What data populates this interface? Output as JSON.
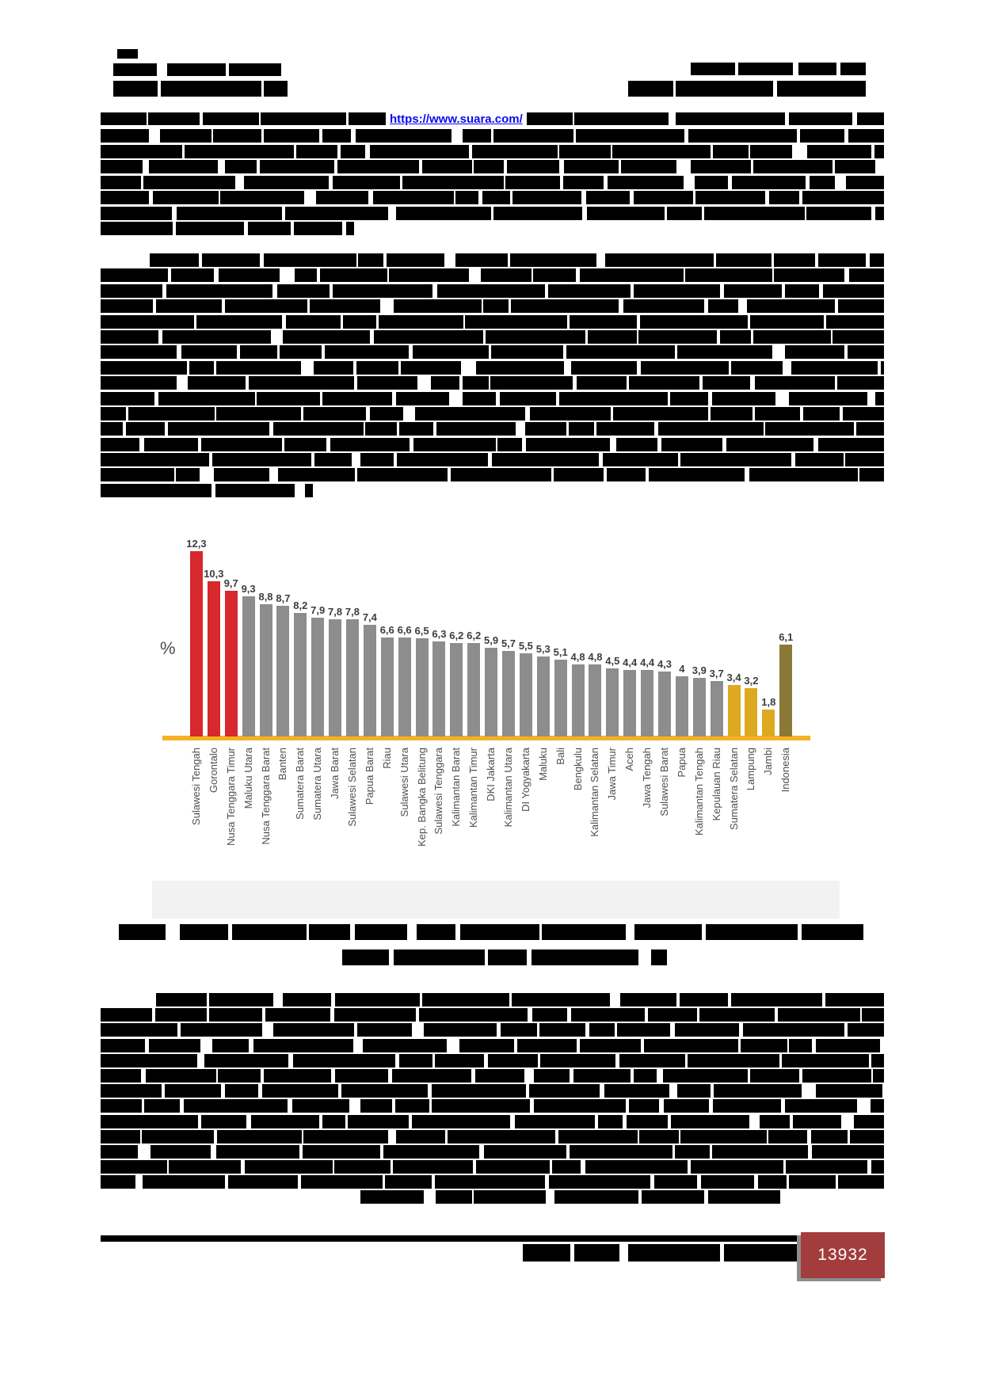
{
  "page": {
    "source_url": "https://www.suara.com/",
    "page_number": "13932"
  },
  "colors": {
    "url_blue": "#0a0af0",
    "redaction": "#000000",
    "page_number_bg": "#a33c3c",
    "page_number_shadow": "#8d8d8d",
    "page_number_text": "#ffffff",
    "bar_red": "#d7282d",
    "bar_gray": "#8d8d8d",
    "bar_gold": "#dca920",
    "bar_olive": "#8a7836",
    "axis_line": "#f4b223",
    "value_label": "#3d3d3d",
    "category_label": "#4f4f4f",
    "figure_band": "#f2f2f2"
  },
  "chart_data": {
    "type": "bar",
    "title": "",
    "xlabel": "",
    "ylabel": "%",
    "ylim": [
      0,
      13
    ],
    "grid": false,
    "legend": "none",
    "decimal_separator": ",",
    "bars": [
      {
        "label": "Sulawesi Tengah",
        "value": 12.3,
        "display": "12,3",
        "color": "red"
      },
      {
        "label": "Gorontalo",
        "value": 10.3,
        "display": "10,3",
        "color": "red"
      },
      {
        "label": "Nusa Tenggara Timur",
        "value": 9.7,
        "display": "9,7",
        "color": "red"
      },
      {
        "label": "Maluku Utara",
        "value": 9.3,
        "display": "9,3",
        "color": "gray"
      },
      {
        "label": "Nusa Tenggara Barat",
        "value": 8.8,
        "display": "8,8",
        "color": "gray"
      },
      {
        "label": "Banten",
        "value": 8.7,
        "display": "8,7",
        "color": "gray"
      },
      {
        "label": "Sumatera Barat",
        "value": 8.2,
        "display": "8,2",
        "color": "gray"
      },
      {
        "label": "Sumatera Utara",
        "value": 7.9,
        "display": "7,9",
        "color": "gray"
      },
      {
        "label": "Jawa Barat",
        "value": 7.8,
        "display": "7,8",
        "color": "gray"
      },
      {
        "label": "Sulawesi Selatan",
        "value": 7.8,
        "display": "7,8",
        "color": "gray"
      },
      {
        "label": "Papua Barat",
        "value": 7.4,
        "display": "7,4",
        "color": "gray"
      },
      {
        "label": "Riau",
        "value": 6.6,
        "display": "6,6",
        "color": "gray"
      },
      {
        "label": "Sulawesi Utara",
        "value": 6.6,
        "display": "6,6",
        "color": "gray"
      },
      {
        "label": "Kep. Bangka Belitung",
        "value": 6.5,
        "display": "6,5",
        "color": "gray"
      },
      {
        "label": "Sulawesi Tenggara",
        "value": 6.3,
        "display": "6,3",
        "color": "gray"
      },
      {
        "label": "Kalimantan Barat",
        "value": 6.2,
        "display": "6,2",
        "color": "gray"
      },
      {
        "label": "Kalimantan Timur",
        "value": 6.2,
        "display": "6,2",
        "color": "gray"
      },
      {
        "label": "DKI Jakarta",
        "value": 5.9,
        "display": "5,9",
        "color": "gray"
      },
      {
        "label": "Kalimantan Utara",
        "value": 5.7,
        "display": "5,7",
        "color": "gray"
      },
      {
        "label": "DI Yogyakarta",
        "value": 5.5,
        "display": "5,5",
        "color": "gray"
      },
      {
        "label": "Maluku",
        "value": 5.3,
        "display": "5,3",
        "color": "gray"
      },
      {
        "label": "Bali",
        "value": 5.1,
        "display": "5,1",
        "color": "gray"
      },
      {
        "label": "Bengkulu",
        "value": 4.8,
        "display": "4,8",
        "color": "gray"
      },
      {
        "label": "Kalimantan Selatan",
        "value": 4.8,
        "display": "4,8",
        "color": "gray"
      },
      {
        "label": "Jawa Timur",
        "value": 4.5,
        "display": "4,5",
        "color": "gray"
      },
      {
        "label": "Aceh",
        "value": 4.4,
        "display": "4,4",
        "color": "gray"
      },
      {
        "label": "Jawa Tengah",
        "value": 4.4,
        "display": "4,4",
        "color": "gray"
      },
      {
        "label": "Sulawesi Barat",
        "value": 4.3,
        "display": "4,3",
        "color": "gray"
      },
      {
        "label": "Papua",
        "value": 4,
        "display": "4",
        "color": "gray"
      },
      {
        "label": "Kalimantan Tengah",
        "value": 3.9,
        "display": "3,9",
        "color": "gray"
      },
      {
        "label": "Kepulauan Riau",
        "value": 3.7,
        "display": "3,7",
        "color": "gray"
      },
      {
        "label": "Sumatera Selatan",
        "value": 3.4,
        "display": "3,4",
        "color": "gold"
      },
      {
        "label": "Lampung",
        "value": 3.2,
        "display": "3,2",
        "color": "gold"
      },
      {
        "label": "Jambi",
        "value": 1.8,
        "display": "1,8",
        "color": "gold"
      },
      {
        "label": "Indonesia",
        "value": 6.1,
        "display": "6,1",
        "color": "olive"
      }
    ]
  }
}
